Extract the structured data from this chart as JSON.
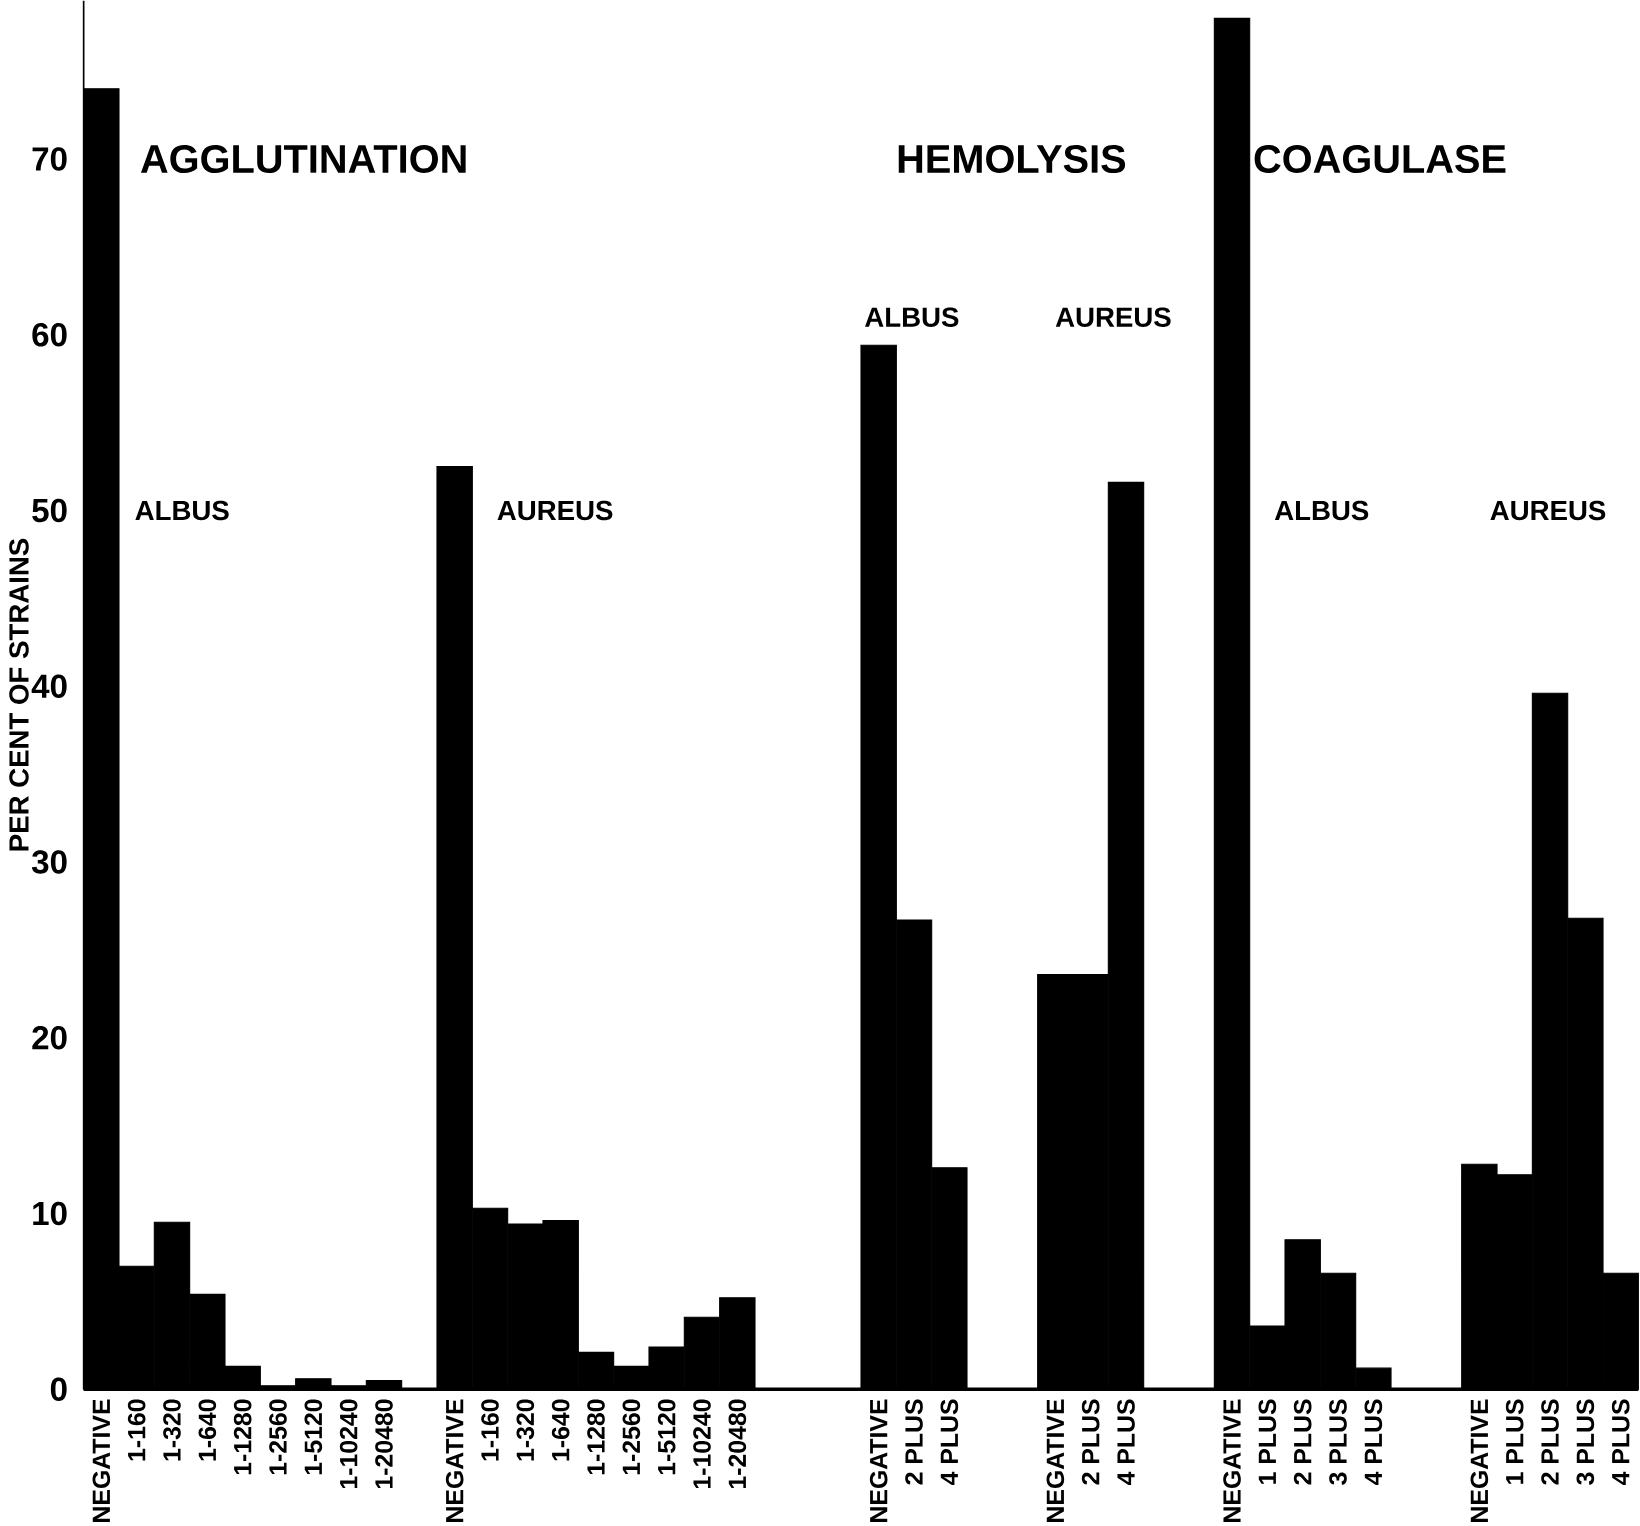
{
  "chart_data": {
    "type": "bar",
    "ylabel": "PER CENT OF STRAINS",
    "color": "#000000",
    "categories": [
      "NEGATIVE",
      "1-160",
      "1-320",
      "1-640",
      "1-1280",
      "1-2560",
      "1-5120",
      "1-10240",
      "1-20480",
      null,
      "NEGATIVE",
      "1-160",
      "1-320",
      "1-640",
      "1-1280",
      "1-2560",
      "1-5120",
      "1-10240",
      "1-20480",
      null,
      null,
      null,
      "NEGATIVE",
      "2 PLUS",
      "4 PLUS",
      null,
      null,
      "NEGATIVE",
      "2 PLUS",
      "4 PLUS",
      null,
      null,
      "NEGATIVE",
      "1 PLUS",
      "2 PLUS",
      "3 PLUS",
      "4 PLUS",
      null,
      null,
      "NEGATIVE",
      "1 PLUS",
      "2 PLUS",
      "3 PLUS",
      "4 PLUS"
    ],
    "values": [
      74,
      7,
      9.5,
      5.4,
      1.3,
      0.2,
      0.6,
      0.2,
      0.5,
      null,
      52.5,
      10.3,
      9.4,
      9.6,
      2.1,
      1.3,
      2.4,
      4.1,
      5.2,
      null,
      null,
      null,
      59.4,
      26.7,
      12.6,
      null,
      null,
      23.6,
      23.6,
      51.6,
      null,
      null,
      78,
      3.6,
      8.5,
      6.6,
      1.2,
      null,
      null,
      12.8,
      12.2,
      39.6,
      26.8,
      6.6
    ],
    "ylim": [
      0,
      79
    ],
    "yticks": [
      0,
      10,
      20,
      30,
      40,
      50,
      60,
      70
    ],
    "annotations": [
      "AGGLUTINATION",
      "ALBUS",
      "AUREUS",
      "HEMOLYSIS",
      "ALBUS",
      "AUREUS",
      "COAGULASE",
      "ALBUS",
      "AUREUS"
    ]
  }
}
